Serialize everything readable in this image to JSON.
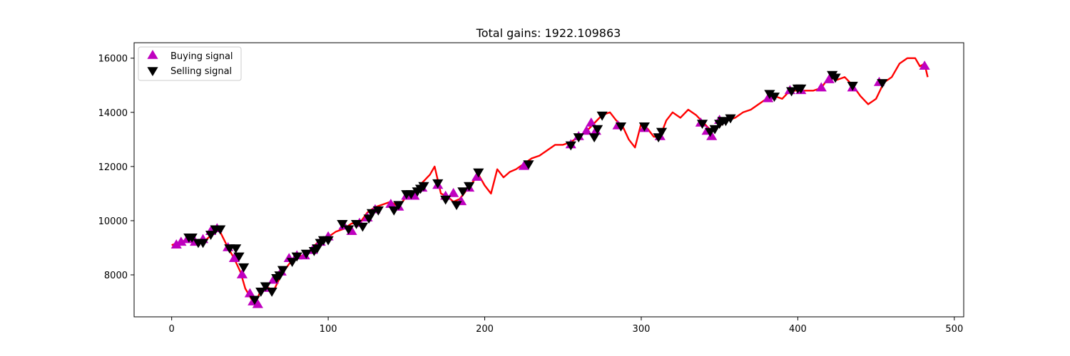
{
  "chart_data": {
    "type": "line",
    "title": "Total gains: 1922.109863",
    "xlabel": "",
    "ylabel": "",
    "xlim": [
      -24,
      506
    ],
    "ylim": [
      6450,
      16570
    ],
    "xticks": [
      0,
      100,
      200,
      300,
      400,
      500
    ],
    "yticks": [
      8000,
      10000,
      12000,
      14000,
      16000
    ],
    "grid": false,
    "legend": {
      "placement": "top-left",
      "entries": [
        "Buying signal",
        "Selling signal"
      ]
    },
    "colors": {
      "price": "#ff0000",
      "buy": "#bf00bf",
      "sell": "#000000"
    },
    "price": {
      "x": [
        0,
        10,
        20,
        30,
        36,
        40,
        44,
        47,
        50,
        53,
        56,
        60,
        65,
        70,
        75,
        80,
        85,
        90,
        95,
        100,
        105,
        110,
        115,
        120,
        125,
        130,
        135,
        140,
        145,
        150,
        155,
        160,
        165,
        168,
        172,
        176,
        180,
        184,
        188,
        192,
        196,
        200,
        204,
        208,
        212,
        216,
        220,
        225,
        230,
        235,
        240,
        245,
        250,
        255,
        260,
        265,
        270,
        275,
        280,
        284,
        288,
        292,
        296,
        300,
        304,
        308,
        312,
        316,
        320,
        325,
        330,
        335,
        340,
        345,
        350,
        355,
        360,
        365,
        370,
        375,
        380,
        385,
        390,
        395,
        400,
        405,
        410,
        415,
        420,
        425,
        430,
        435,
        440,
        445,
        450,
        455,
        460,
        465,
        470,
        475,
        478,
        481,
        483
      ],
      "y": [
        9100,
        9300,
        9200,
        9700,
        9000,
        8600,
        8100,
        7500,
        7200,
        6900,
        7300,
        7600,
        7400,
        8000,
        8400,
        8700,
        8700,
        9000,
        9300,
        9400,
        9600,
        9700,
        9900,
        9900,
        10300,
        10500,
        10600,
        10700,
        10500,
        10900,
        11000,
        11400,
        11700,
        12000,
        11000,
        10900,
        10700,
        10800,
        11100,
        11400,
        11700,
        11300,
        11000,
        11900,
        11600,
        11800,
        11900,
        12100,
        12300,
        12400,
        12600,
        12800,
        12800,
        12900,
        13100,
        13300,
        13600,
        13900,
        14000,
        13700,
        13500,
        13000,
        12700,
        13600,
        13400,
        13100,
        13100,
        13700,
        14000,
        13800,
        14100,
        13900,
        13600,
        13300,
        13500,
        13700,
        13800,
        14000,
        14100,
        14300,
        14500,
        14600,
        14500,
        14800,
        14800,
        14800,
        14800,
        14900,
        15300,
        15200,
        15300,
        15000,
        14600,
        14300,
        14500,
        15100,
        15300,
        15800,
        16000,
        16000,
        15700,
        15800,
        15300
      ]
    },
    "series": [
      {
        "name": "Buying signal",
        "marker": "triangle-up",
        "x": [
          3,
          6,
          10,
          15,
          20,
          25,
          29,
          36,
          40,
          45,
          50,
          52,
          55,
          60,
          65,
          70,
          75,
          80,
          85,
          90,
          95,
          100,
          110,
          115,
          120,
          125,
          130,
          140,
          145,
          150,
          155,
          160,
          170,
          175,
          180,
          185,
          190,
          195,
          225,
          255,
          260,
          265,
          268,
          271,
          285,
          302,
          312,
          338,
          342,
          345,
          350,
          381,
          383,
          395,
          402,
          415,
          420,
          435,
          452,
          481
        ],
        "y": [
          9100,
          9200,
          9300,
          9200,
          9300,
          9600,
          9700,
          9000,
          8600,
          8000,
          7300,
          7000,
          6900,
          7500,
          7800,
          8100,
          8600,
          8700,
          8700,
          8900,
          9200,
          9400,
          9800,
          9600,
          9900,
          10100,
          10400,
          10600,
          10500,
          10900,
          10900,
          11200,
          11300,
          10900,
          11000,
          10700,
          11200,
          11600,
          12000,
          12800,
          13100,
          13300,
          13600,
          13300,
          13500,
          13400,
          13100,
          13600,
          13300,
          13100,
          13700,
          14500,
          14600,
          14800,
          14800,
          14900,
          15200,
          14900,
          15100,
          15700
        ]
      },
      {
        "name": "Selling signal",
        "marker": "triangle-down",
        "x": [
          11,
          13,
          17,
          20,
          25,
          28,
          31,
          37,
          41,
          43,
          46,
          53,
          57,
          60,
          64,
          67,
          69,
          71,
          77,
          80,
          86,
          91,
          93,
          95,
          97,
          100,
          109,
          113,
          118,
          122,
          126,
          128,
          132,
          142,
          145,
          150,
          153,
          157,
          159,
          161,
          170,
          175,
          182,
          186,
          190,
          196,
          228,
          255,
          260,
          270,
          272,
          275,
          287,
          302,
          311,
          313,
          339,
          344,
          347,
          350,
          352,
          354,
          357,
          382,
          385,
          396,
          400,
          402,
          422,
          424,
          435,
          454
        ],
        "y": [
          9400,
          9400,
          9200,
          9200,
          9500,
          9700,
          9700,
          9000,
          9000,
          8700,
          8300,
          7100,
          7400,
          7600,
          7400,
          7900,
          8000,
          8200,
          8500,
          8700,
          8800,
          8900,
          9000,
          9200,
          9300,
          9300,
          9900,
          9700,
          9900,
          9800,
          10100,
          10300,
          10400,
          10400,
          10600,
          11000,
          11000,
          11100,
          11200,
          11300,
          11400,
          10800,
          10600,
          11100,
          11300,
          11800,
          12100,
          12800,
          13100,
          13100,
          13400,
          13900,
          13500,
          13500,
          13100,
          13300,
          13600,
          13300,
          13400,
          13600,
          13700,
          13700,
          13800,
          14700,
          14600,
          14800,
          14900,
          14900,
          15400,
          15300,
          15000,
          15100
        ]
      }
    ]
  }
}
